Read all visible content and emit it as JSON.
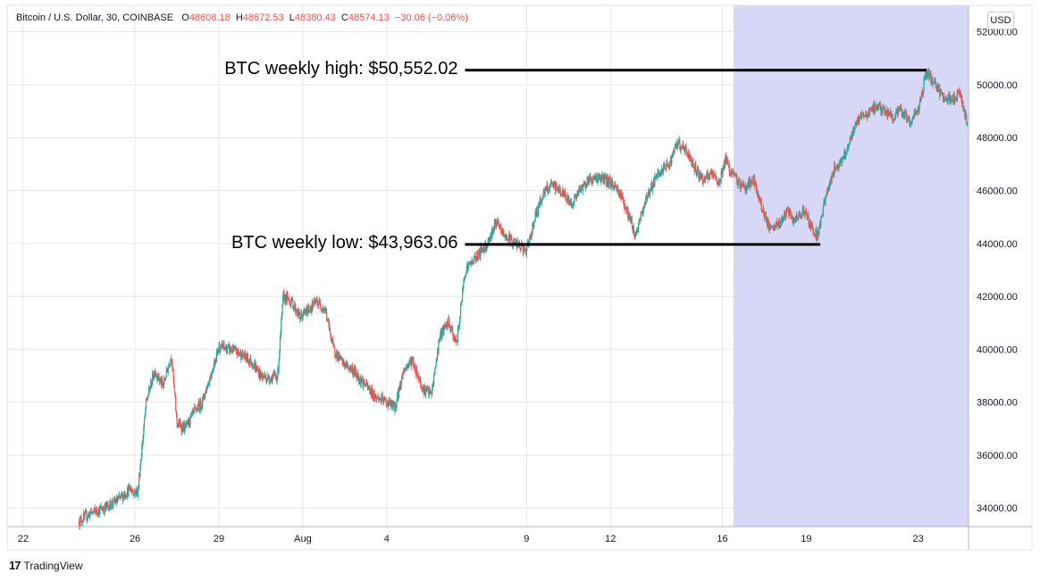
{
  "legend": {
    "symbol": "Bitcoin / U.S. Dollar, 30, COINBASE",
    "open_label": "O",
    "open": "48608.18",
    "high_label": "H",
    "high": "48672.53",
    "low_label": "L",
    "low": "48380.43",
    "close_label": "C",
    "close": "48574.13",
    "change": "−30.06 (−0.06%)"
  },
  "currency_button": "USD",
  "footer": {
    "logo": "17",
    "brand": "TradingView"
  },
  "colors": {
    "up": "#26a69a",
    "down": "#ef5350",
    "highlight": "#d6d8f5",
    "grid": "#e6e7eb",
    "annotation": "#000000"
  },
  "chart_data": {
    "type": "candlestick",
    "title": "",
    "xlabel": "",
    "ylabel": "",
    "ylim": [
      33300,
      53000
    ],
    "y_ticks": [
      "52000.00",
      "50000.00",
      "48000.00",
      "46000.00",
      "44000.00",
      "42000.00",
      "40000.00",
      "38000.00",
      "36000.00",
      "34000.00"
    ],
    "y_tick_values": [
      52000,
      50000,
      48000,
      46000,
      44000,
      42000,
      40000,
      38000,
      36000,
      34000
    ],
    "x_ticks": [
      "22",
      "26",
      "29",
      "Aug",
      "4",
      "9",
      "12",
      "16",
      "19",
      "23"
    ],
    "x_tick_days": [
      -0.4,
      3.6,
      6.6,
      9.6,
      12.6,
      17.6,
      20.6,
      24.6,
      27.6,
      31.6
    ],
    "x_range_days": [
      -0.97,
      33.4
    ],
    "highlight_range_days": [
      25.0,
      33.4
    ],
    "grid": true,
    "series": [
      {
        "values": [
          [
            1.6,
            33500
          ],
          [
            2.0,
            33800
          ],
          [
            2.5,
            34000
          ],
          [
            3.0,
            34300
          ],
          [
            3.4,
            34700
          ],
          [
            3.7,
            34600
          ],
          [
            4.0,
            38000
          ],
          [
            4.3,
            39200
          ],
          [
            4.6,
            38600
          ],
          [
            4.9,
            39800
          ],
          [
            5.1,
            37200
          ],
          [
            5.4,
            37000
          ],
          [
            5.7,
            37600
          ],
          [
            6.0,
            38000
          ],
          [
            6.3,
            39000
          ],
          [
            6.6,
            40100
          ],
          [
            7.0,
            40000
          ],
          [
            7.4,
            39800
          ],
          [
            7.8,
            39500
          ],
          [
            8.1,
            39000
          ],
          [
            8.4,
            38900
          ],
          [
            8.7,
            39000
          ],
          [
            8.9,
            42000
          ],
          [
            9.2,
            41800
          ],
          [
            9.5,
            41200
          ],
          [
            9.8,
            41500
          ],
          [
            10.1,
            41800
          ],
          [
            10.4,
            41500
          ],
          [
            10.7,
            40000
          ],
          [
            11.0,
            39500
          ],
          [
            11.4,
            39200
          ],
          [
            11.8,
            38700
          ],
          [
            12.2,
            38200
          ],
          [
            12.6,
            38000
          ],
          [
            12.9,
            37800
          ],
          [
            13.2,
            39200
          ],
          [
            13.5,
            39600
          ],
          [
            13.9,
            38500
          ],
          [
            14.2,
            38300
          ],
          [
            14.5,
            40500
          ],
          [
            14.8,
            41000
          ],
          [
            15.1,
            40200
          ],
          [
            15.4,
            43000
          ],
          [
            15.8,
            43500
          ],
          [
            16.2,
            44000
          ],
          [
            16.5,
            44800
          ],
          [
            16.8,
            44300
          ],
          [
            17.2,
            44000
          ],
          [
            17.6,
            43700
          ],
          [
            17.9,
            45000
          ],
          [
            18.2,
            45900
          ],
          [
            18.5,
            46200
          ],
          [
            18.8,
            46000
          ],
          [
            19.2,
            45500
          ],
          [
            19.5,
            46000
          ],
          [
            19.8,
            46400
          ],
          [
            20.2,
            46500
          ],
          [
            20.6,
            46300
          ],
          [
            20.9,
            46000
          ],
          [
            21.2,
            45200
          ],
          [
            21.5,
            44300
          ],
          [
            21.9,
            45800
          ],
          [
            22.3,
            46600
          ],
          [
            22.7,
            47000
          ],
          [
            23.0,
            47800
          ],
          [
            23.3,
            47500
          ],
          [
            23.6,
            46900
          ],
          [
            23.9,
            46400
          ],
          [
            24.2,
            46600
          ],
          [
            24.5,
            46300
          ],
          [
            24.7,
            47200
          ],
          [
            24.9,
            46700
          ],
          [
            25.1,
            46400
          ],
          [
            25.4,
            46100
          ],
          [
            25.7,
            46400
          ],
          [
            26.0,
            45400
          ],
          [
            26.3,
            44500
          ],
          [
            26.6,
            44700
          ],
          [
            26.9,
            45200
          ],
          [
            27.2,
            44800
          ],
          [
            27.5,
            45300
          ],
          [
            27.8,
            44600
          ],
          [
            28.0,
            44300
          ],
          [
            28.3,
            45800
          ],
          [
            28.6,
            46800
          ],
          [
            28.9,
            47200
          ],
          [
            29.2,
            48000
          ],
          [
            29.5,
            48800
          ],
          [
            29.8,
            48900
          ],
          [
            30.1,
            49200
          ],
          [
            30.4,
            49000
          ],
          [
            30.7,
            48800
          ],
          [
            31.0,
            49000
          ],
          [
            31.3,
            48600
          ],
          [
            31.6,
            49000
          ],
          [
            31.9,
            50500
          ],
          [
            32.2,
            50000
          ],
          [
            32.5,
            49500
          ],
          [
            32.8,
            49400
          ],
          [
            33.1,
            49700
          ],
          [
            33.35,
            48574.13
          ]
        ]
      }
    ],
    "annotations": [
      {
        "text": "BTC weekly high: $50,552.02",
        "value": 50552.02,
        "day_start": 15.4,
        "day_end": 31.9
      },
      {
        "text": "BTC weekly low: $43,963.06",
        "value": 43963.06,
        "day_start": 15.4,
        "day_end": 28.1
      }
    ]
  }
}
